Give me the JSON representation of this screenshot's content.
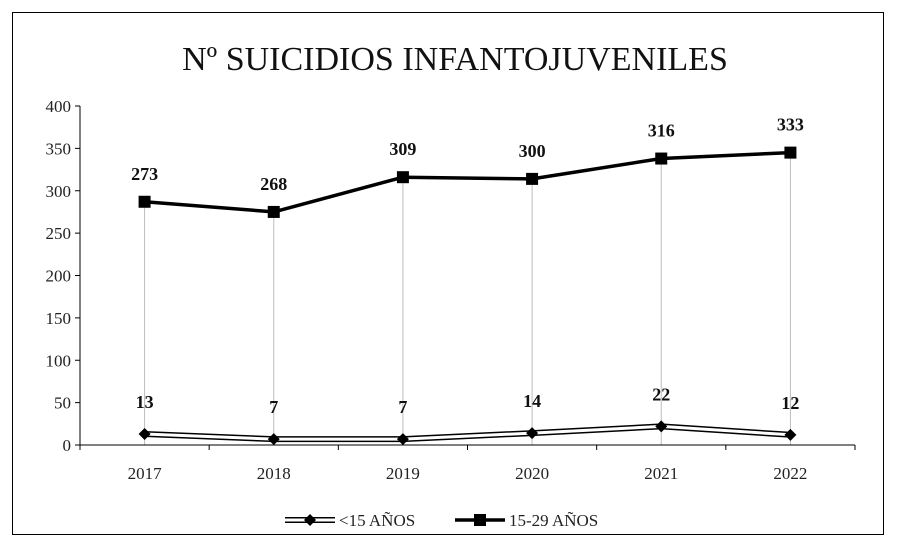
{
  "chart_data": {
    "type": "line",
    "title": "Nº SUICIDIOS INFANTOJUVENILES",
    "xlabel": "",
    "ylabel": "",
    "categories": [
      "2017",
      "2018",
      "2019",
      "2020",
      "2021",
      "2022"
    ],
    "ylim": [
      0,
      400
    ],
    "yticks": [
      0,
      50,
      100,
      150,
      200,
      250,
      300,
      350,
      400
    ],
    "legend_position": "bottom",
    "series": [
      {
        "name": "<15 AÑOS",
        "values": [
          13,
          7,
          7,
          14,
          22,
          12
        ],
        "labels": [
          "13",
          "7",
          "7",
          "14",
          "22",
          "12"
        ],
        "marker": "diamond",
        "color": "#000000",
        "line_style": "double"
      },
      {
        "name": "15-29 AÑOS",
        "values": [
          287,
          275,
          316,
          314,
          338,
          345
        ],
        "labels": [
          "273",
          "268",
          "309",
          "300",
          "316",
          "333"
        ],
        "marker": "square",
        "color": "#000000",
        "line_style": "solid"
      }
    ],
    "drop_lines": true,
    "grid": false
  }
}
